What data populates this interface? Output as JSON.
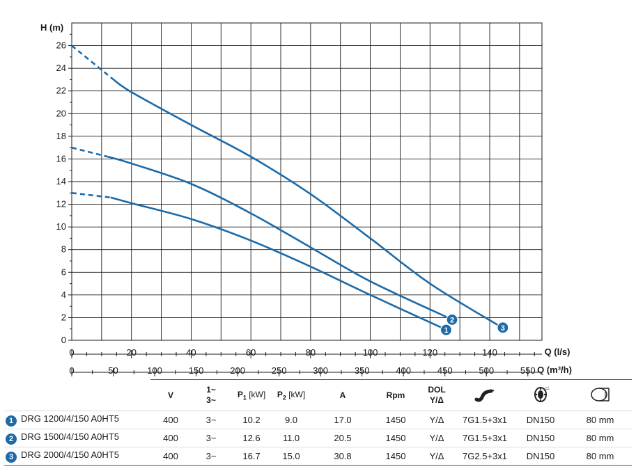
{
  "chart_data": {
    "type": "line",
    "ylabel": "H (m)",
    "xlabel": "Q (l/s)",
    "xlabel_secondary": "Q (m³/h)",
    "xlim": [
      0,
      157.5
    ],
    "ylim": [
      0,
      28
    ],
    "x_ticks": [
      "0",
      "20",
      "40",
      "60",
      "80",
      "100",
      "120",
      "140"
    ],
    "x_ticks_values": [
      0,
      20,
      40,
      60,
      80,
      100,
      120,
      140
    ],
    "x_secondary_ticks": [
      "0",
      "50",
      "100",
      "150",
      "200",
      "250",
      "300",
      "350",
      "400",
      "450",
      "500",
      "550"
    ],
    "x_secondary_ticks_values": [
      0,
      50,
      100,
      150,
      200,
      250,
      300,
      350,
      400,
      450,
      500,
      550
    ],
    "y_ticks": [
      "0",
      "2",
      "4",
      "6",
      "8",
      "10",
      "12",
      "14",
      "16",
      "18",
      "20",
      "22",
      "24",
      "26"
    ],
    "y_ticks_values": [
      0,
      2,
      4,
      6,
      8,
      10,
      12,
      14,
      16,
      18,
      20,
      22,
      24,
      26
    ],
    "grid": true,
    "series": [
      {
        "marker": "1",
        "dashed_until": 13,
        "x": [
          0,
          13,
          20,
          40,
          60,
          80,
          100,
          124
        ],
        "y": [
          13,
          12.6,
          12.1,
          10.7,
          8.8,
          6.5,
          4.0,
          1.1
        ]
      },
      {
        "marker": "2",
        "dashed_until": 12,
        "x": [
          0,
          12,
          20,
          40,
          60,
          80,
          100,
          126
        ],
        "y": [
          17,
          16.2,
          15.6,
          13.8,
          11.2,
          8.2,
          5.2,
          2.0
        ]
      },
      {
        "marker": "3",
        "dashed_until": 14,
        "x": [
          0,
          14,
          20,
          40,
          60,
          80,
          100,
          120,
          143
        ],
        "y": [
          26,
          23.0,
          21.9,
          19.0,
          16.2,
          12.9,
          9.0,
          5.0,
          1.3
        ]
      }
    ]
  },
  "colors": {
    "curve": "#1c6aa8",
    "grid": "#1a1a1a",
    "rule": "#2d5f8a"
  },
  "table": {
    "headers": {
      "voltage": "V",
      "phase_top": "1~",
      "phase_bottom": "3~",
      "p1": "P",
      "p1_sub": "1",
      "p1_unit": "[kW]",
      "p2": "P",
      "p2_sub": "2",
      "p2_unit": "[kW]",
      "amp": "A",
      "rpm": "Rpm",
      "start_top": "DOL",
      "start_bottom": "Y/Δ",
      "cable_icon": "cable-icon",
      "outlet_icon": "flange-icon",
      "passage_icon": "solids-passage-icon"
    },
    "rows": [
      {
        "num": "1",
        "model": "DRG 1200/4/150 A0HT5",
        "v": "400",
        "phase": "3~",
        "p1": "10.2",
        "p2": "9.0",
        "a": "17.0",
        "rpm": "1450",
        "start": "Y/Δ",
        "cable": "7G1.5+3x1",
        "outlet": "DN150",
        "passage": "80 mm"
      },
      {
        "num": "2",
        "model": "DRG 1500/4/150 A0HT5",
        "v": "400",
        "phase": "3~",
        "p1": "12.6",
        "p2": "11.0",
        "a": "20.5",
        "rpm": "1450",
        "start": "Y/Δ",
        "cable": "7G1.5+3x1",
        "outlet": "DN150",
        "passage": "80 mm"
      },
      {
        "num": "3",
        "model": "DRG 2000/4/150 A0HT5",
        "v": "400",
        "phase": "3~",
        "p1": "16.7",
        "p2": "15.0",
        "a": "30.8",
        "rpm": "1450",
        "start": "Y/Δ",
        "cable": "7G2.5+3x1",
        "outlet": "DN150",
        "passage": "80 mm"
      }
    ]
  }
}
